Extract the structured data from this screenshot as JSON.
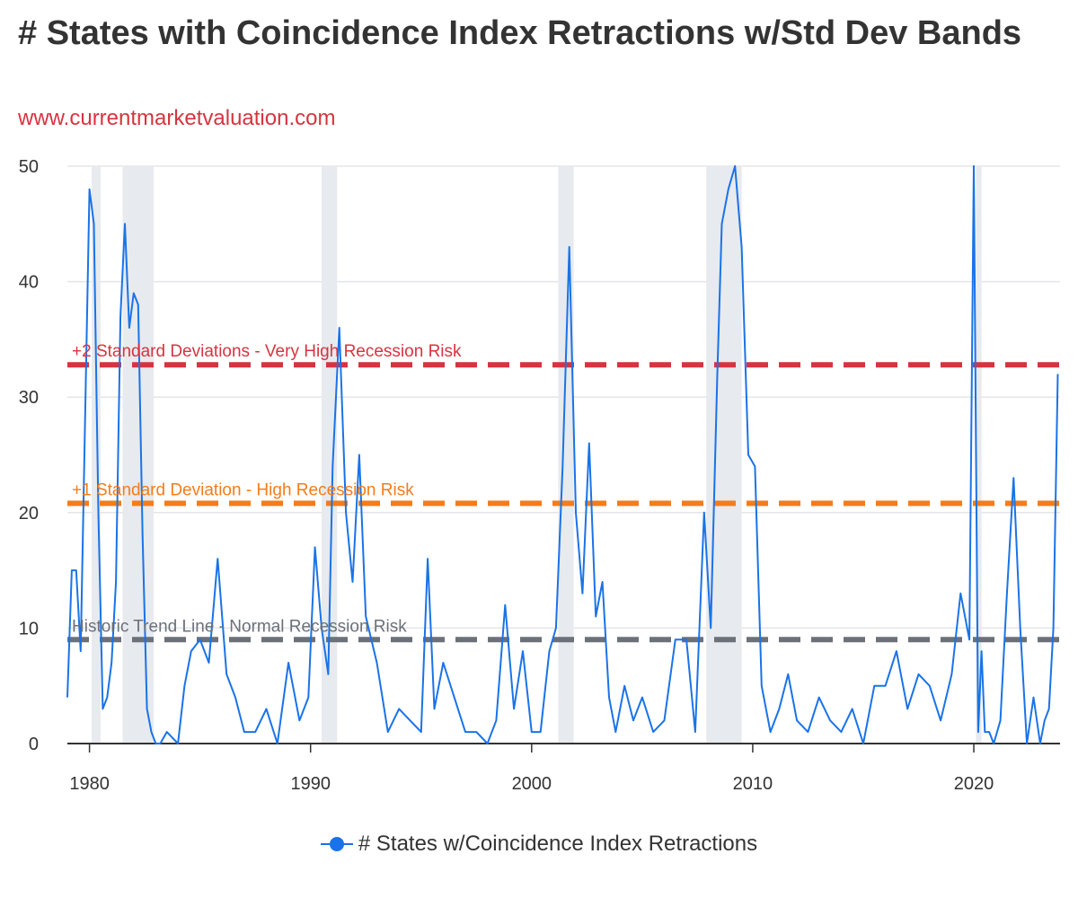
{
  "header": {
    "title": "# States with Coincidence Index Retractions w/Std Dev Bands",
    "subtitle": "www.currentmarketvaluation.com"
  },
  "legend": {
    "label": "# States w/Coincidence Index Retractions"
  },
  "colors": {
    "series": "#1a73e8",
    "band_2sd": "#d6343f",
    "band_1sd": "#f57c1a",
    "trend": "#6b7079",
    "recession_shade": "#e7eaee",
    "title": "#333333"
  },
  "chart_data": {
    "type": "line",
    "xlabel": "",
    "ylabel": "",
    "xlim": [
      1979.0,
      2023.9
    ],
    "ylim": [
      0,
      50
    ],
    "y_ticks": [
      0,
      10,
      20,
      30,
      40,
      50
    ],
    "x_ticks": [
      1980,
      1990,
      2000,
      2010,
      2020
    ],
    "grid": true,
    "legend_position": "bottom",
    "series": [
      {
        "name": "# States w/Coincidence Index Retractions",
        "x": [
          1979.0,
          1979.2,
          1979.4,
          1979.6,
          1979.8,
          1980.0,
          1980.2,
          1980.4,
          1980.6,
          1980.8,
          1981.0,
          1981.2,
          1981.4,
          1981.6,
          1981.8,
          1982.0,
          1982.2,
          1982.4,
          1982.6,
          1982.8,
          1983.0,
          1983.2,
          1983.5,
          1984.0,
          1984.3,
          1984.6,
          1985.0,
          1985.4,
          1985.8,
          1986.2,
          1986.6,
          1987.0,
          1987.5,
          1988.0,
          1988.5,
          1989.0,
          1989.5,
          1989.9,
          1990.2,
          1990.5,
          1990.8,
          1991.0,
          1991.3,
          1991.6,
          1991.9,
          1992.2,
          1992.5,
          1993.0,
          1993.5,
          1994.0,
          1994.5,
          1995.0,
          1995.3,
          1995.6,
          1996.0,
          1996.5,
          1997.0,
          1997.5,
          1998.0,
          1998.4,
          1998.8,
          1999.2,
          1999.6,
          2000.0,
          2000.4,
          2000.8,
          2001.1,
          2001.4,
          2001.7,
          2002.0,
          2002.3,
          2002.6,
          2002.9,
          2003.2,
          2003.5,
          2003.8,
          2004.2,
          2004.6,
          2005.0,
          2005.5,
          2006.0,
          2006.5,
          2007.0,
          2007.4,
          2007.8,
          2008.1,
          2008.4,
          2008.6,
          2008.9,
          2009.2,
          2009.5,
          2009.8,
          2010.1,
          2010.4,
          2010.8,
          2011.2,
          2011.6,
          2012.0,
          2012.5,
          2013.0,
          2013.5,
          2014.0,
          2014.5,
          2015.0,
          2015.5,
          2016.0,
          2016.5,
          2017.0,
          2017.5,
          2018.0,
          2018.5,
          2019.0,
          2019.4,
          2019.8,
          2020.0,
          2020.2,
          2020.35,
          2020.5,
          2020.7,
          2020.9,
          2021.2,
          2021.5,
          2021.8,
          2022.1,
          2022.4,
          2022.7,
          2023.0,
          2023.2,
          2023.4,
          2023.6,
          2023.8
        ],
        "values": [
          4,
          15,
          15,
          8,
          28,
          48,
          45,
          20,
          3,
          4,
          7,
          14,
          37,
          45,
          36,
          39,
          38,
          18,
          3,
          1,
          0,
          0,
          1,
          0,
          5,
          8,
          9,
          7,
          16,
          6,
          4,
          1,
          1,
          3,
          0,
          7,
          2,
          4,
          17,
          10,
          6,
          24,
          36,
          20,
          14,
          25,
          11,
          7,
          1,
          3,
          2,
          1,
          16,
          3,
          7,
          4,
          1,
          1,
          0,
          2,
          12,
          3,
          8,
          1,
          1,
          8,
          10,
          24,
          43,
          20,
          13,
          26,
          11,
          14,
          4,
          1,
          5,
          2,
          4,
          1,
          2,
          9,
          9,
          1,
          20,
          10,
          32,
          45,
          48,
          50,
          43,
          25,
          24,
          5,
          1,
          3,
          6,
          2,
          1,
          4,
          2,
          1,
          3,
          0,
          5,
          5,
          8,
          3,
          6,
          5,
          2,
          6,
          13,
          9,
          50,
          1,
          8,
          1,
          1,
          0,
          2,
          13,
          23,
          10,
          0,
          4,
          0,
          2,
          3,
          10,
          32
        ]
      }
    ],
    "reference_lines": [
      {
        "label": "+2 Standard Deviations - Very High Recession Risk",
        "value": 32.8
      },
      {
        "label": "+1 Standard Deviation - High Recession Risk",
        "value": 20.8
      },
      {
        "label": "Historic Trend Line - Normal Recession Risk",
        "value": 9.0
      }
    ],
    "recession_periods": [
      [
        1980.1,
        1980.5
      ],
      [
        1981.5,
        1982.9
      ],
      [
        1990.5,
        1991.2
      ],
      [
        2001.2,
        2001.9
      ],
      [
        2007.9,
        2009.5
      ],
      [
        2020.1,
        2020.35
      ]
    ]
  }
}
